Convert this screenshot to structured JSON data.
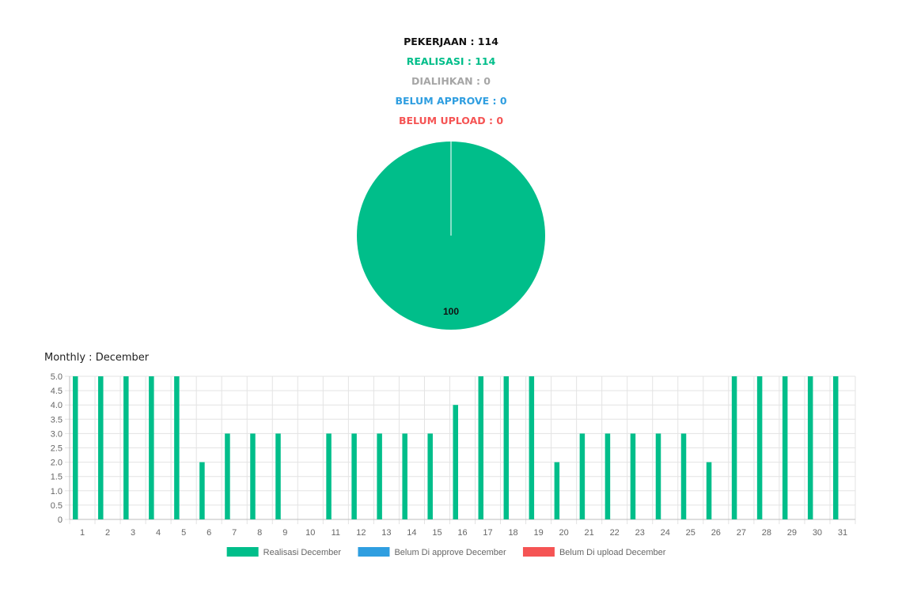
{
  "summary": {
    "pekerjaan": "PEKERJAAN : 114",
    "realisasi": "REALISASI : 114",
    "dialihkan": "DIALIHKAN : 0",
    "belum_approve": "BELUM APPROVE : 0",
    "belum_upload": "BELUM UPLOAD : 0"
  },
  "monthly_title": "Monthly : December",
  "chart_data": [
    {
      "type": "pie",
      "slices": [
        {
          "label": "Realisasi",
          "value": 100,
          "color": "#00be8a"
        }
      ],
      "data_labels": [
        "100"
      ]
    },
    {
      "type": "bar",
      "categories": [
        "1",
        "2",
        "3",
        "4",
        "5",
        "6",
        "7",
        "8",
        "9",
        "10",
        "11",
        "12",
        "13",
        "14",
        "15",
        "16",
        "17",
        "18",
        "19",
        "20",
        "21",
        "22",
        "23",
        "24",
        "25",
        "26",
        "27",
        "28",
        "29",
        "30",
        "31"
      ],
      "series": [
        {
          "name": "Realisasi December",
          "color": "#00be8a",
          "values": [
            5,
            5,
            5,
            5,
            5,
            2,
            3,
            3,
            3,
            0,
            3,
            3,
            3,
            3,
            3,
            4,
            5,
            5,
            5,
            2,
            3,
            3,
            3,
            3,
            3,
            2,
            5,
            5,
            5,
            5,
            5
          ]
        },
        {
          "name": "Belum Di approve December",
          "color": "#2f9ee0",
          "values": [
            0,
            0,
            0,
            0,
            0,
            0,
            0,
            0,
            0,
            0,
            0,
            0,
            0,
            0,
            0,
            0,
            0,
            0,
            0,
            0,
            0,
            0,
            0,
            0,
            0,
            0,
            0,
            0,
            0,
            0,
            0
          ]
        },
        {
          "name": "Belum Di upload December",
          "color": "#f55454",
          "values": [
            0,
            0,
            0,
            0,
            0,
            0,
            0,
            0,
            0,
            0,
            0,
            0,
            0,
            0,
            0,
            0,
            0,
            0,
            0,
            0,
            0,
            0,
            0,
            0,
            0,
            0,
            0,
            0,
            0,
            0,
            0
          ]
        }
      ],
      "ylim": [
        0,
        5
      ],
      "yticks": [
        "5.0",
        "4.5",
        "4.0",
        "3.5",
        "3.0",
        "2.5",
        "2.0",
        "1.5",
        "1.0",
        "0.5",
        "0"
      ],
      "grid": true,
      "legend": "bottom"
    }
  ]
}
